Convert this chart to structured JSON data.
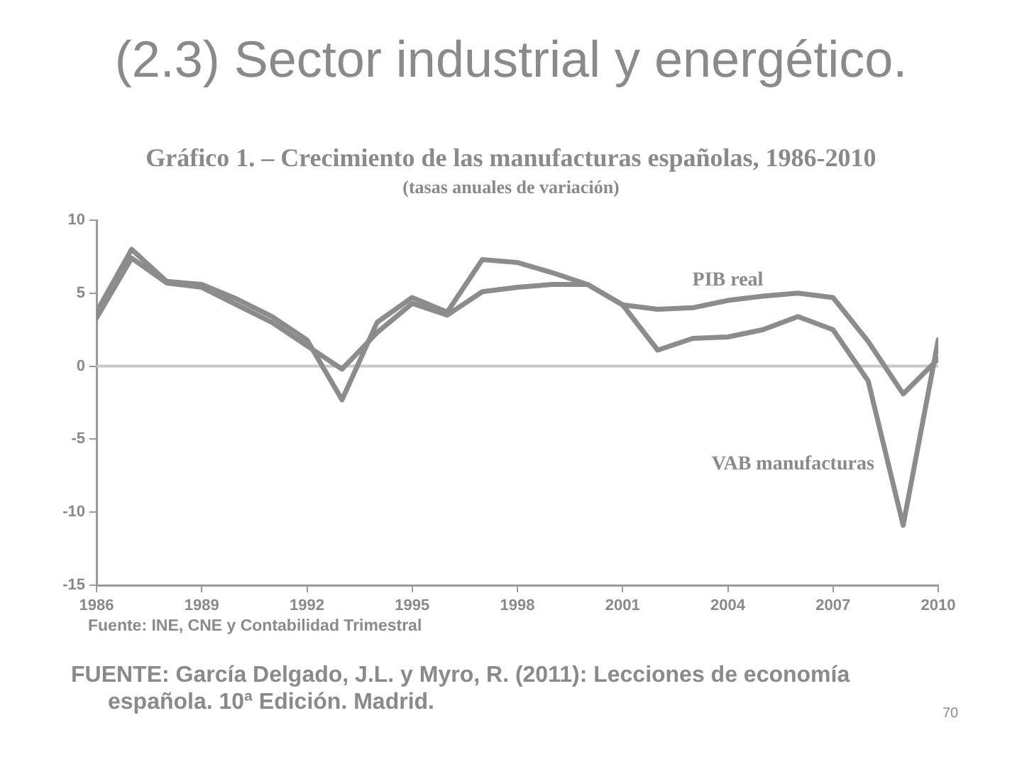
{
  "chart_data": {
    "type": "line",
    "title": "(2.3) Sector industrial y energético.",
    "subtitle": "Gráfico 1. – Crecimiento de las manufacturas españolas, 1986-2010",
    "annotations": [
      "(tasas anuales de variación)",
      "Fuente: INE, CNE y Contabilidad Trimestral",
      "FUENTE: García Delgado, J.L. y Myro, R. (2011): Lecciones de economía española. 10ª Edición. Madrid.",
      "70"
    ],
    "x": [
      1986,
      1987,
      1988,
      1989,
      1990,
      1991,
      1992,
      1993,
      1994,
      1995,
      1996,
      1997,
      1998,
      1999,
      2000,
      2001,
      2002,
      2003,
      2004,
      2005,
      2006,
      2007,
      2008,
      2009,
      2010
    ],
    "series": [
      {
        "name": "PIB real",
        "color": "#8c8c8c",
        "values": [
          3.3,
          7.4,
          5.7,
          5.4,
          4.2,
          3.0,
          1.4,
          -0.2,
          2.3,
          4.3,
          3.5,
          5.1,
          5.4,
          5.6,
          5.6,
          4.2,
          3.9,
          4.0,
          4.5,
          4.8,
          5.0,
          4.7,
          1.7,
          -1.9,
          0.5
        ]
      },
      {
        "name": "VAB manufacturas",
        "color": "#8c8c8c",
        "values": [
          3.7,
          8.0,
          5.8,
          5.6,
          4.6,
          3.4,
          1.8,
          -2.3,
          3.0,
          4.7,
          3.7,
          7.3,
          7.1,
          6.4,
          5.6,
          4.2,
          1.1,
          1.9,
          2.0,
          2.5,
          3.4,
          2.5,
          -1.0,
          -10.9,
          1.8
        ]
      }
    ],
    "xlim": [
      1986,
      2010
    ],
    "xticks": [
      1986,
      1989,
      1992,
      1995,
      1998,
      2001,
      2004,
      2007,
      2010
    ],
    "ylim": [
      -15,
      10
    ],
    "yticks": [
      -15,
      -10,
      -5,
      0,
      5,
      10
    ],
    "ref_lines": [
      {
        "axis": "y",
        "value": 0,
        "color": "#c8c8c8"
      }
    ],
    "line_style": "solid"
  }
}
